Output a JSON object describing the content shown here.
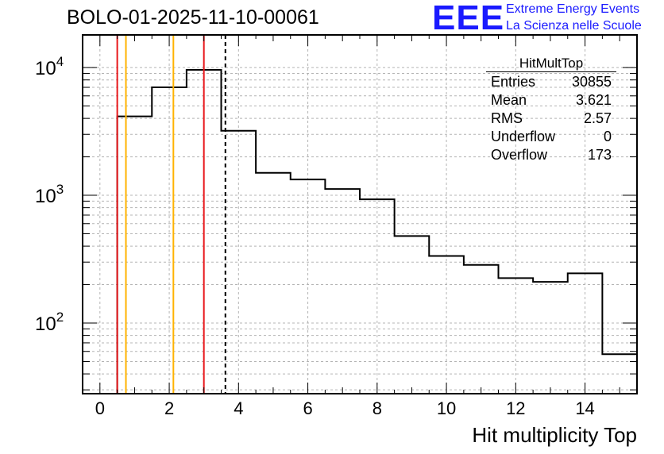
{
  "chart_data": {
    "type": "histogram",
    "title": "BOLO-01-2025-11-10-00061",
    "xlabel": "Hit multiplicity Top",
    "ylabel": "",
    "x_scale": "linear",
    "y_scale": "log",
    "xlim": [
      -0.5,
      15.5
    ],
    "ylim": [
      28,
      18000
    ],
    "xticks": [
      0,
      2,
      4,
      6,
      8,
      10,
      12,
      14
    ],
    "xtick_labels": [
      "0",
      "2",
      "4",
      "6",
      "8",
      "10",
      "12",
      "14"
    ],
    "yticks": [
      100,
      1000,
      10000
    ],
    "ytick_labels": [
      {
        "base": "10",
        "exp": "2"
      },
      {
        "base": "10",
        "exp": "3"
      },
      {
        "base": "10",
        "exp": "4"
      }
    ],
    "grid": true,
    "bin_edges": [
      0.5,
      1.5,
      2.5,
      3.5,
      4.5,
      5.5,
      6.5,
      7.5,
      8.5,
      9.5,
      10.5,
      11.5,
      12.5,
      13.5,
      14.5,
      15.5
    ],
    "counts": [
      4150,
      7000,
      9600,
      3200,
      1500,
      1330,
      1120,
      930,
      480,
      335,
      285,
      225,
      210,
      245,
      57
    ],
    "markers": [
      {
        "name": "red-line-1",
        "x": 0.5,
        "color": "#e8171b"
      },
      {
        "name": "yellow-line-1",
        "x": 0.75,
        "color": "#ffb300"
      },
      {
        "name": "yellow-line-2",
        "x": 2.12,
        "color": "#ffb300"
      },
      {
        "name": "red-line-2",
        "x": 3.0,
        "color": "#e8171b"
      },
      {
        "name": "mean-dashed-line",
        "x": 3.621,
        "color": "#000000",
        "dashed": true
      }
    ],
    "stats": {
      "name": "HitMultTop",
      "rows": [
        {
          "label": "Entries",
          "value": "30855"
        },
        {
          "label": "Mean",
          "value": "3.621"
        },
        {
          "label": "RMS",
          "value": "2.57"
        },
        {
          "label": "Underflow",
          "value": "0"
        },
        {
          "label": "Overflow",
          "value": "173"
        }
      ]
    }
  },
  "logo": {
    "text": "EEE",
    "line1": "Extreme Energy Events",
    "line2": "La Scienza nelle Scuole",
    "color": "#1a1aff"
  }
}
